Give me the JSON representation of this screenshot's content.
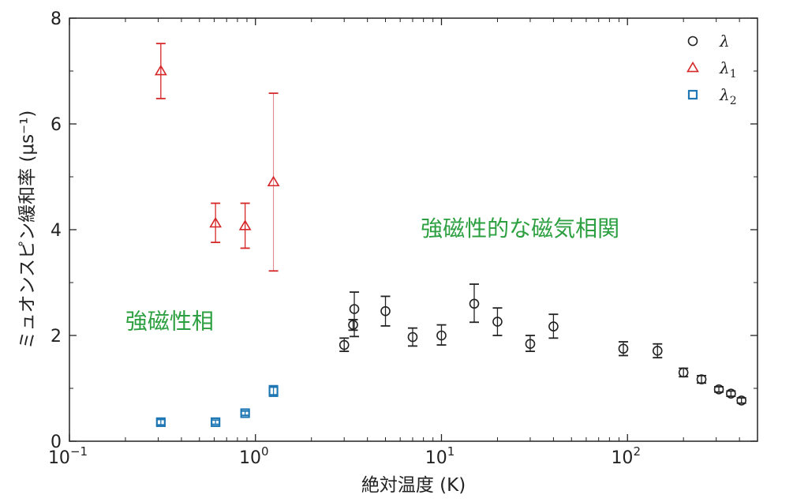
{
  "chart_data": {
    "type": "scatter",
    "title": "",
    "xlabel": "絶対温度 (K)",
    "ylabel": "ミュオンスピン緩和率 (μs⁻¹)",
    "xscale": "log",
    "xlim": [
      0.1,
      500
    ],
    "ylim": [
      0,
      8
    ],
    "x_ticks": [
      {
        "value": 0.1,
        "base": "10",
        "exp": "−1"
      },
      {
        "value": 1,
        "base": "10",
        "exp": "0"
      },
      {
        "value": 10,
        "base": "10",
        "exp": "1"
      },
      {
        "value": 100,
        "base": "10",
        "exp": "2"
      }
    ],
    "y_ticks": [
      0,
      2,
      4,
      6,
      8
    ],
    "legend_position": "top-right",
    "series": [
      {
        "name": "λ",
        "marker": "circle",
        "color": "#222222",
        "points": [
          {
            "x": 3.0,
            "y": 1.82,
            "lo": 1.7,
            "hi": 1.95
          },
          {
            "x": 3.35,
            "y": 2.2,
            "lo": 2.1,
            "hi": 2.3
          },
          {
            "x": 3.4,
            "y": 2.5,
            "lo": 1.98,
            "hi": 2.82
          },
          {
            "x": 5.0,
            "y": 2.46,
            "lo": 2.18,
            "hi": 2.74
          },
          {
            "x": 7.0,
            "y": 1.97,
            "lo": 1.8,
            "hi": 2.14
          },
          {
            "x": 10.0,
            "y": 2.0,
            "lo": 1.82,
            "hi": 2.2
          },
          {
            "x": 15.0,
            "y": 2.6,
            "lo": 2.25,
            "hi": 2.97
          },
          {
            "x": 20.0,
            "y": 2.26,
            "lo": 2.0,
            "hi": 2.52
          },
          {
            "x": 30.0,
            "y": 1.84,
            "lo": 1.7,
            "hi": 2.0
          },
          {
            "x": 40.0,
            "y": 2.17,
            "lo": 1.95,
            "hi": 2.4
          },
          {
            "x": 95.0,
            "y": 1.75,
            "lo": 1.62,
            "hi": 1.88
          },
          {
            "x": 145.0,
            "y": 1.71,
            "lo": 1.58,
            "hi": 1.84
          },
          {
            "x": 200.0,
            "y": 1.3,
            "lo": 1.22,
            "hi": 1.38
          },
          {
            "x": 250.0,
            "y": 1.17,
            "lo": 1.1,
            "hi": 1.24
          },
          {
            "x": 310.0,
            "y": 0.98,
            "lo": 0.93,
            "hi": 1.03
          },
          {
            "x": 360.0,
            "y": 0.9,
            "lo": 0.85,
            "hi": 0.95
          },
          {
            "x": 410.0,
            "y": 0.77,
            "lo": 0.72,
            "hi": 0.82
          }
        ]
      },
      {
        "name": "λ",
        "subscript": "1",
        "marker": "triangle",
        "color": "#d62728",
        "points": [
          {
            "x": 0.31,
            "y": 7.0,
            "lo": 6.48,
            "hi": 7.52
          },
          {
            "x": 0.61,
            "y": 4.12,
            "lo": 3.76,
            "hi": 4.5
          },
          {
            "x": 0.88,
            "y": 4.07,
            "lo": 3.65,
            "hi": 4.5
          },
          {
            "x": 1.25,
            "y": 4.9,
            "lo": 3.22,
            "hi": 6.58
          }
        ]
      },
      {
        "name": "λ",
        "subscript": "2",
        "marker": "square",
        "color": "#1f77b4",
        "points": [
          {
            "x": 0.31,
            "y": 0.36,
            "lo": 0.31,
            "hi": 0.41
          },
          {
            "x": 0.61,
            "y": 0.36,
            "lo": 0.32,
            "hi": 0.4
          },
          {
            "x": 0.88,
            "y": 0.53,
            "lo": 0.49,
            "hi": 0.57
          },
          {
            "x": 1.25,
            "y": 0.95,
            "lo": 0.85,
            "hi": 1.05
          }
        ]
      }
    ],
    "annotations": [
      {
        "text": "強磁性的な磁気相関",
        "x": 12,
        "y": 4.0,
        "color": "#2ca040"
      },
      {
        "text": "強磁性相",
        "x": 0.31,
        "y": 2.25,
        "color": "#2ca040"
      }
    ]
  }
}
